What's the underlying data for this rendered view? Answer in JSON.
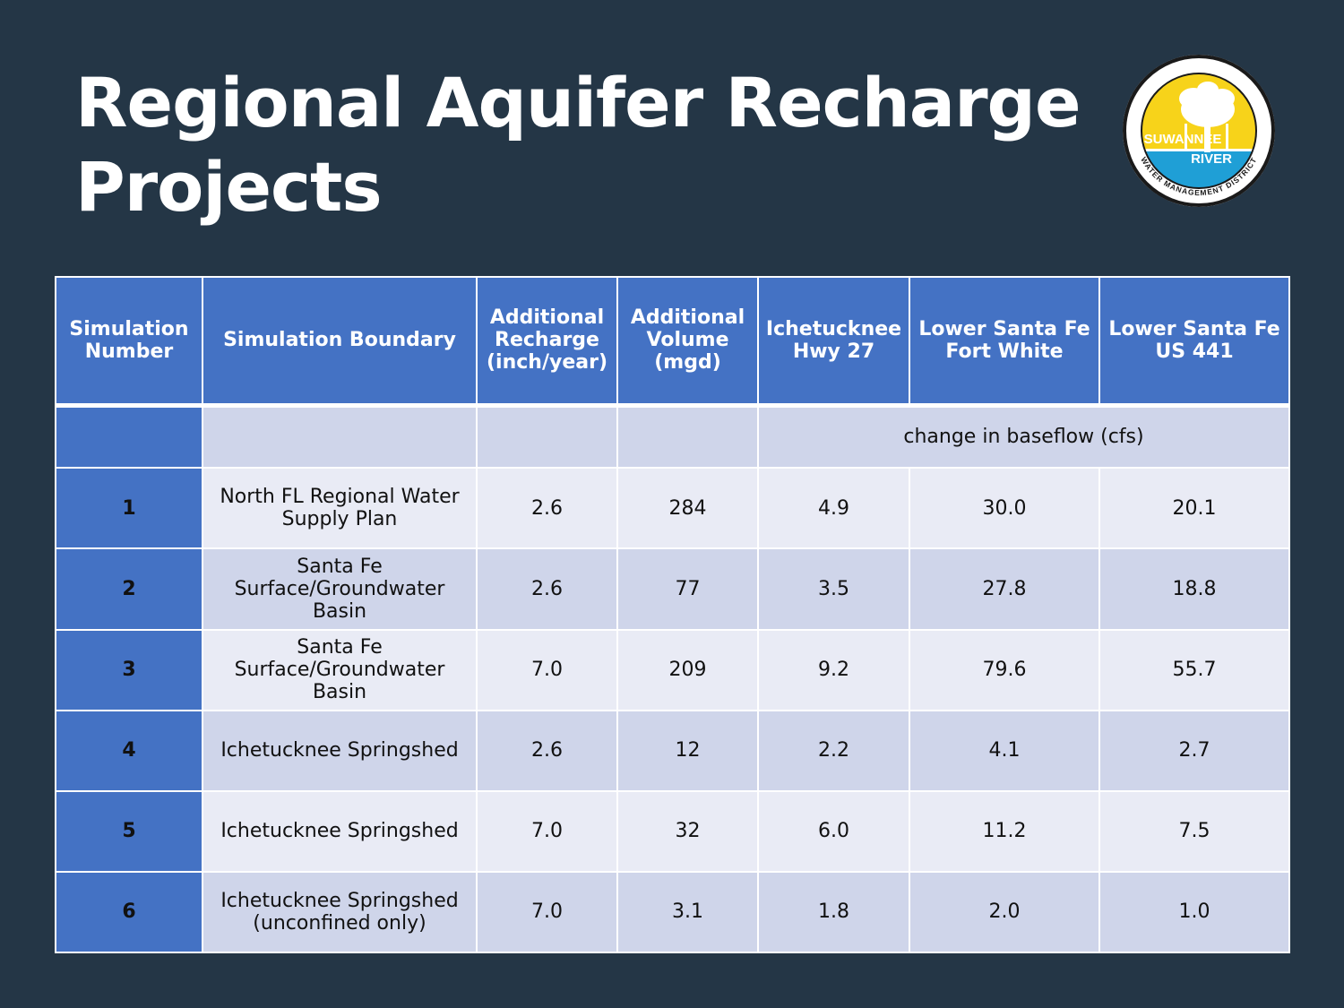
{
  "slide": {
    "title_line1": "Regional Aquifer Recharge",
    "title_line2": "Projects"
  },
  "logo": {
    "text_top": "SUWANNEE",
    "text_mid": "RIVER",
    "text_ring": "WATER MANAGEMENT DISTRICT",
    "colors": {
      "yellow": "#f7d31a",
      "blue": "#1f9fd6",
      "ring": "#1a1a1a"
    }
  },
  "table": {
    "headers": {
      "sim_number": "Simulation Number",
      "boundary": "Simulation Boundary",
      "recharge": "Additional Recharge (inch/year)",
      "volume": "Additional Volume (mgd)",
      "ichetucknee": "Ichetucknee Hwy 27",
      "fort_white": "Lower Santa Fe Fort White",
      "us441": "Lower Santa Fe US 441"
    },
    "units_label": "change in baseflow (cfs)",
    "rows": [
      {
        "num": "1",
        "boundary": "North FL Regional Water Supply Plan",
        "recharge": "2.6",
        "volume": "284",
        "ichetucknee": "4.9",
        "fort_white": "30.0",
        "us441": "20.1"
      },
      {
        "num": "2",
        "boundary": "Santa Fe Surface/Groundwater Basin",
        "recharge": "2.6",
        "volume": "77",
        "ichetucknee": "3.5",
        "fort_white": "27.8",
        "us441": "18.8"
      },
      {
        "num": "3",
        "boundary": "Santa Fe Surface/Groundwater Basin",
        "recharge": "7.0",
        "volume": "209",
        "ichetucknee": "9.2",
        "fort_white": "79.6",
        "us441": "55.7"
      },
      {
        "num": "4",
        "boundary": "Ichetucknee Springshed",
        "recharge": "2.6",
        "volume": "12",
        "ichetucknee": "2.2",
        "fort_white": "4.1",
        "us441": "2.7"
      },
      {
        "num": "5",
        "boundary": "Ichetucknee Springshed",
        "recharge": "7.0",
        "volume": "32",
        "ichetucknee": "6.0",
        "fort_white": "11.2",
        "us441": "7.5"
      },
      {
        "num": "6",
        "boundary": "Ichetucknee Springshed (unconfined only)",
        "recharge": "7.0",
        "volume": "3.1",
        "ichetucknee": "1.8",
        "fort_white": "2.0",
        "us441": "1.0"
      }
    ]
  }
}
